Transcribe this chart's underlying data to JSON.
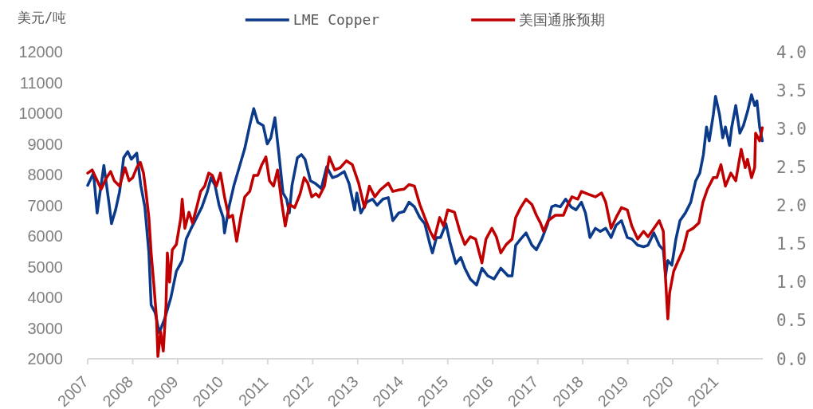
{
  "chart_data": {
    "type": "line",
    "ylabel": "美元/吨",
    "legend": "top",
    "line_style": "solid",
    "xlim": [
      2007,
      2022
    ],
    "xticks": [
      2007,
      2008,
      2009,
      2010,
      2011,
      2012,
      2013,
      2014,
      2015,
      2016,
      2017,
      2018,
      2019,
      2020,
      2021
    ],
    "ylim": [
      2000,
      12000
    ],
    "yticks": [
      2000,
      3000,
      4000,
      5000,
      6000,
      7000,
      8000,
      9000,
      10000,
      11000,
      12000
    ],
    "y2lim": [
      0,
      4
    ],
    "y2ticks": [
      {
        "value": 0,
        "label": "0.0"
      },
      {
        "value": 0.5,
        "label": "0.5"
      },
      {
        "value": 1,
        "label": "1.0"
      },
      {
        "value": 1.5,
        "label": "1.5"
      },
      {
        "value": 2,
        "label": "2.0"
      },
      {
        "value": 2.5,
        "label": "2.5"
      },
      {
        "value": 3,
        "label": "3.0"
      },
      {
        "value": 3.5,
        "label": "3.5"
      },
      {
        "value": 4,
        "label": "4.0"
      }
    ],
    "series": [
      {
        "name": "LME Copper",
        "color": "#0b3a8a",
        "x": [
          2007.0,
          2007.13,
          2007.21,
          2007.36,
          2007.48,
          2007.53,
          2007.62,
          2007.71,
          2007.8,
          2007.89,
          2007.97,
          2008.09,
          2008.18,
          2008.27,
          2008.36,
          2008.41,
          2008.5,
          2008.59,
          2008.71,
          2008.85,
          2008.97,
          2009.1,
          2009.19,
          2009.3,
          2009.42,
          2009.54,
          2009.66,
          2009.74,
          2009.83,
          2009.92,
          2010.01,
          2010.04,
          2010.14,
          2010.25,
          2010.37,
          2010.49,
          2010.6,
          2010.69,
          2010.78,
          2010.9,
          2010.99,
          2011.07,
          2011.16,
          2011.25,
          2011.34,
          2011.42,
          2011.48,
          2011.54,
          2011.66,
          2011.75,
          2011.83,
          2011.95,
          2012.07,
          2012.19,
          2012.31,
          2012.44,
          2012.54,
          2012.7,
          2012.81,
          2012.93,
          2012.98,
          2013.07,
          2013.2,
          2013.33,
          2013.43,
          2013.56,
          2013.68,
          2013.78,
          2013.91,
          2014.03,
          2014.14,
          2014.26,
          2014.38,
          2014.49,
          2014.61,
          2014.66,
          2014.75,
          2014.84,
          2014.96,
          2015.05,
          2015.18,
          2015.29,
          2015.38,
          2015.5,
          2015.64,
          2015.76,
          2015.89,
          2016.03,
          2016.18,
          2016.34,
          2016.43,
          2016.51,
          2016.62,
          2016.74,
          2016.87,
          2016.97,
          2017.09,
          2017.22,
          2017.31,
          2017.39,
          2017.5,
          2017.62,
          2017.74,
          2017.85,
          2017.97,
          2018.06,
          2018.16,
          2018.28,
          2018.39,
          2018.51,
          2018.63,
          2018.74,
          2018.86,
          2018.99,
          2019.09,
          2019.22,
          2019.35,
          2019.45,
          2019.58,
          2019.7,
          2019.79,
          2019.84,
          2019.89,
          2019.98,
          2020.07,
          2020.16,
          2020.28,
          2020.4,
          2020.51,
          2020.6,
          2020.68,
          2020.75,
          2020.81,
          2020.9,
          2020.95,
          2021.04,
          2021.11,
          2021.17,
          2021.26,
          2021.31,
          2021.4,
          2021.49,
          2021.57,
          2021.66,
          2021.75,
          2021.82,
          2021.87,
          2021.93,
          2021.99
        ],
        "values": [
          7650,
          8050,
          6750,
          8300,
          7000,
          6400,
          6850,
          7450,
          8550,
          8750,
          8500,
          8700,
          7650,
          6950,
          5450,
          3750,
          3500,
          2850,
          3300,
          4000,
          4850,
          5200,
          5900,
          6250,
          6600,
          6950,
          7450,
          7900,
          7650,
          7000,
          6600,
          6100,
          6950,
          7650,
          8250,
          8850,
          9600,
          10150,
          9700,
          9600,
          9000,
          9200,
          9850,
          8650,
          7400,
          7200,
          6750,
          7650,
          8550,
          8650,
          8500,
          7800,
          7700,
          7550,
          8250,
          7900,
          7950,
          8100,
          7700,
          6850,
          7400,
          6750,
          7100,
          7200,
          7000,
          7200,
          7250,
          6500,
          6750,
          6800,
          7100,
          6950,
          6600,
          6400,
          5700,
          5450,
          5950,
          5950,
          6400,
          5800,
          5100,
          5300,
          4950,
          4600,
          4400,
          4950,
          4700,
          4600,
          4950,
          4700,
          4700,
          5700,
          5900,
          6100,
          5700,
          5550,
          5900,
          6400,
          6950,
          7000,
          6950,
          7200,
          6950,
          6850,
          7100,
          6750,
          5950,
          6250,
          6150,
          6250,
          5950,
          6350,
          6500,
          5950,
          5900,
          5700,
          5650,
          5700,
          6100,
          5700,
          5550,
          4700,
          5200,
          5050,
          5900,
          6500,
          6750,
          7100,
          7800,
          8050,
          8650,
          9550,
          9100,
          9950,
          10550,
          9950,
          9200,
          9550,
          8950,
          9550,
          10250,
          9350,
          9600,
          10050,
          10600,
          10250,
          10400,
          9550,
          9100
        ]
      },
      {
        "name": "美国通胀预期",
        "color": "#c00000",
        "axis": "y2",
        "x": [
          2007.0,
          2007.1,
          2007.18,
          2007.3,
          2007.42,
          2007.51,
          2007.59,
          2007.71,
          2007.83,
          2007.92,
          2008.0,
          2008.09,
          2008.17,
          2008.24,
          2008.3,
          2008.36,
          2008.41,
          2008.47,
          2008.53,
          2008.56,
          2008.62,
          2008.68,
          2008.74,
          2008.77,
          2008.82,
          2008.88,
          2008.97,
          2009.07,
          2009.1,
          2009.16,
          2009.25,
          2009.33,
          2009.42,
          2009.51,
          2009.6,
          2009.69,
          2009.77,
          2009.86,
          2009.95,
          2010.04,
          2010.14,
          2010.22,
          2010.31,
          2010.4,
          2010.49,
          2010.6,
          2010.69,
          2010.78,
          2010.87,
          2010.96,
          2011.04,
          2011.13,
          2011.22,
          2011.31,
          2011.39,
          2011.48,
          2011.6,
          2011.72,
          2011.81,
          2011.89,
          2011.98,
          2012.07,
          2012.14,
          2012.26,
          2012.37,
          2012.49,
          2012.61,
          2012.75,
          2012.88,
          2013.02,
          2013.15,
          2013.26,
          2013.38,
          2013.5,
          2013.68,
          2013.78,
          2013.91,
          2014.03,
          2014.14,
          2014.26,
          2014.38,
          2014.49,
          2014.61,
          2014.7,
          2014.82,
          2014.91,
          2015.0,
          2015.15,
          2015.27,
          2015.38,
          2015.5,
          2015.62,
          2015.76,
          2015.85,
          2015.98,
          2016.08,
          2016.18,
          2016.3,
          2016.43,
          2016.51,
          2016.62,
          2016.74,
          2016.87,
          2016.97,
          2017.06,
          2017.13,
          2017.23,
          2017.39,
          2017.57,
          2017.67,
          2017.76,
          2017.89,
          2017.97,
          2018.1,
          2018.28,
          2018.42,
          2018.51,
          2018.63,
          2018.74,
          2018.86,
          2018.99,
          2019.09,
          2019.22,
          2019.35,
          2019.45,
          2019.58,
          2019.7,
          2019.79,
          2019.84,
          2019.89,
          2019.93,
          2020.02,
          2020.1,
          2020.23,
          2020.33,
          2020.45,
          2020.58,
          2020.67,
          2020.77,
          2020.9,
          2020.98,
          2021.07,
          2021.17,
          2021.29,
          2021.4,
          2021.52,
          2021.61,
          2021.66,
          2021.75,
          2021.82,
          2021.84,
          2021.93,
          2021.99
        ],
        "values": [
          2.42,
          2.46,
          2.36,
          2.21,
          2.36,
          2.44,
          2.32,
          2.25,
          2.49,
          2.32,
          2.36,
          2.49,
          2.56,
          2.42,
          2.15,
          1.84,
          1.38,
          0.97,
          0.52,
          0.03,
          0.35,
          0.1,
          0.69,
          1.38,
          1.0,
          1.42,
          1.49,
          1.84,
          2.08,
          1.7,
          1.91,
          1.77,
          1.97,
          2.18,
          2.25,
          2.42,
          2.39,
          2.25,
          2.42,
          2.11,
          1.84,
          1.87,
          1.53,
          1.84,
          2.11,
          2.18,
          2.39,
          2.39,
          2.53,
          2.63,
          2.32,
          2.25,
          2.46,
          2.04,
          1.73,
          2.01,
          1.97,
          2.15,
          2.36,
          2.29,
          2.11,
          2.15,
          2.11,
          2.25,
          2.63,
          2.46,
          2.49,
          2.58,
          2.53,
          2.29,
          1.97,
          2.25,
          2.11,
          2.2,
          2.29,
          2.18,
          2.2,
          2.21,
          2.27,
          2.25,
          2.01,
          1.84,
          1.66,
          1.56,
          1.84,
          1.73,
          1.94,
          1.91,
          1.66,
          1.49,
          1.59,
          1.56,
          1.25,
          1.56,
          1.7,
          1.59,
          1.38,
          1.49,
          1.56,
          1.84,
          1.97,
          2.08,
          2.01,
          1.87,
          1.77,
          1.66,
          1.8,
          1.87,
          1.87,
          2.01,
          2.11,
          2.08,
          2.18,
          2.15,
          2.11,
          2.16,
          2.04,
          1.7,
          1.84,
          1.97,
          1.94,
          1.73,
          1.56,
          1.66,
          1.59,
          1.7,
          1.8,
          1.66,
          1.04,
          0.52,
          0.86,
          1.14,
          1.25,
          1.42,
          1.66,
          1.7,
          1.77,
          2.04,
          2.21,
          2.36,
          2.36,
          2.53,
          2.25,
          2.42,
          2.32,
          2.73,
          2.49,
          2.6,
          2.36,
          2.49,
          2.94,
          2.84,
          3.01
        ]
      }
    ]
  }
}
